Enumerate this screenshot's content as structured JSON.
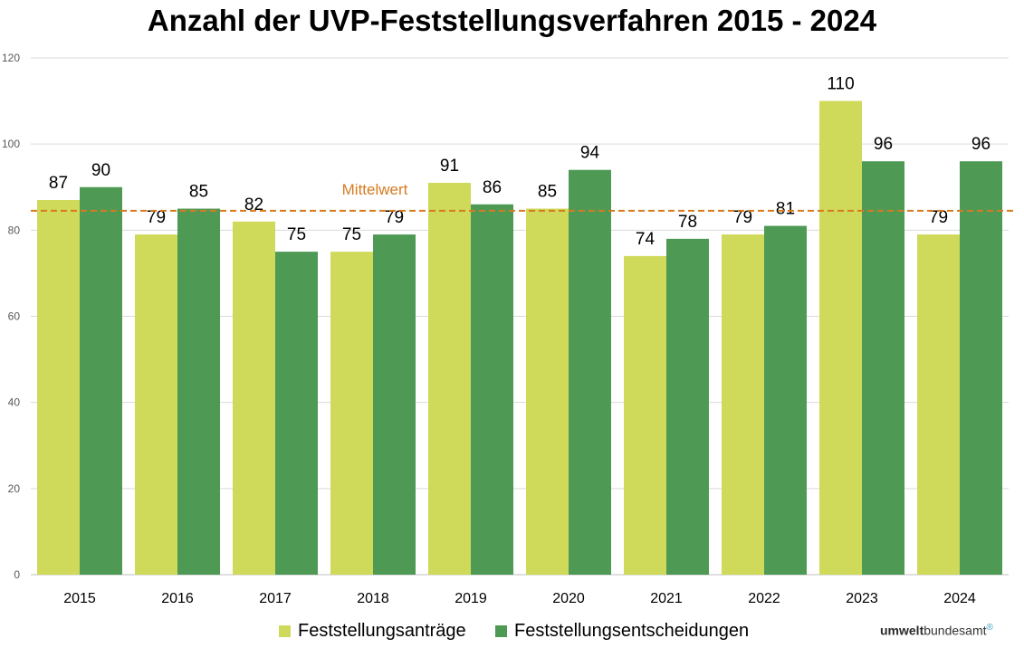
{
  "chart_data": {
    "type": "bar",
    "title": "Anzahl der UVP-Feststellungsverfahren 2015 - 2024",
    "categories": [
      "2015",
      "2016",
      "2017",
      "2018",
      "2019",
      "2020",
      "2021",
      "2022",
      "2023",
      "2024"
    ],
    "series": [
      {
        "name": "Feststellungsanträge",
        "color": "#cfd95a",
        "values": [
          87,
          79,
          82,
          75,
          91,
          85,
          74,
          79,
          110,
          79
        ]
      },
      {
        "name": "Feststellungsentscheidungen",
        "color": "#4e9a55",
        "values": [
          90,
          85,
          75,
          79,
          86,
          94,
          78,
          81,
          96,
          96
        ]
      }
    ],
    "ylim": [
      0,
      120
    ],
    "yticks": [
      0,
      20,
      40,
      60,
      80,
      100,
      120
    ],
    "grid": true,
    "mean_line": {
      "label": "Mittelwert",
      "value": 84.5,
      "color": "#d77a1f"
    },
    "legend_position": "bottom"
  },
  "brand": {
    "bold": "umwelt",
    "rest": "bundesamt"
  }
}
